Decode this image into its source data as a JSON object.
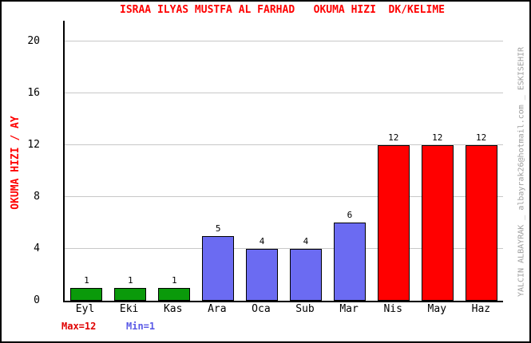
{
  "window": {
    "background": "#ffffff",
    "border_color": "#000000"
  },
  "chart_data": {
    "type": "bar",
    "title": "ISRAA ILYAS MUSTFA AL FARHAD   OKUMA HIZI  DK/KELIME",
    "title_color": "#ff0000",
    "ylabel": "OKUMA HIZI / AY",
    "ylabel_color": "#ff0000",
    "xlabel": "",
    "categories": [
      "Eyl",
      "Eki",
      "Kas",
      "Ara",
      "Oca",
      "Sub",
      "Mar",
      "Nis",
      "May",
      "Haz"
    ],
    "values": [
      1,
      1,
      1,
      5,
      4,
      4,
      6,
      12,
      12,
      12
    ],
    "bar_colors": [
      "#0a9a0a",
      "#0a9a0a",
      "#0a9a0a",
      "#6b6bf2",
      "#6b6bf2",
      "#6b6bf2",
      "#6b6bf2",
      "#ff0000",
      "#ff0000",
      "#ff0000"
    ],
    "bar_outline": "#000000",
    "value_labels_shown": true,
    "yticks": [
      0,
      4,
      8,
      12,
      16,
      20
    ],
    "ylim": [
      0,
      21.6
    ],
    "grid": "horizontal",
    "gridline_color": "#c8c8c8",
    "legend_position": "none"
  },
  "footer": {
    "max_label": "Max=12",
    "max_color": "#e00000",
    "min_label": "Min=1",
    "min_color": "#5a5ae6"
  },
  "watermark": {
    "text": "YALCIN ALBAYRAK _ albayrak26@hotmail.com _ ESKISEHIR",
    "color": "#a0a0a0"
  }
}
